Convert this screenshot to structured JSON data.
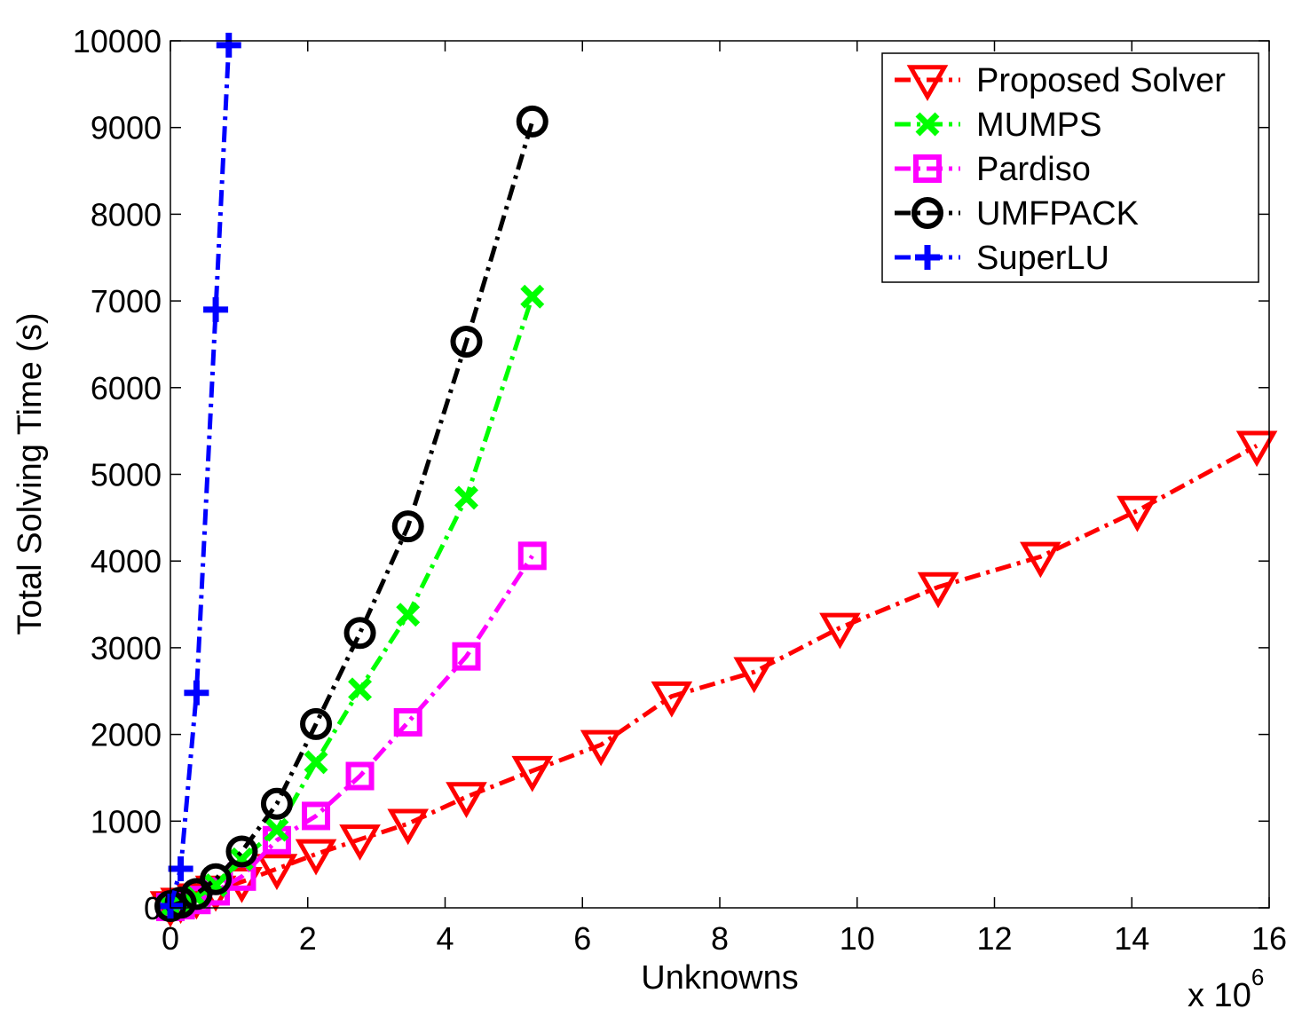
{
  "chart_data": {
    "type": "line",
    "xlabel": "Unknowns",
    "ylabel": "Total Solving Time (s)",
    "x_multiplier": "x 10",
    "x_multiplier_exp": "6",
    "xlim": [
      0,
      16
    ],
    "ylim": [
      0,
      10000
    ],
    "xticks": [
      0,
      2,
      4,
      6,
      8,
      10,
      12,
      14,
      16
    ],
    "yticks": [
      0,
      1000,
      2000,
      3000,
      4000,
      5000,
      6000,
      7000,
      8000,
      9000,
      10000
    ],
    "grid": false,
    "legend_position": "top-right",
    "series": [
      {
        "name": "Proposed Solver",
        "color": "#ff0000",
        "marker": "triangle-down",
        "x": [
          0.0,
          0.15,
          0.38,
          0.66,
          1.04,
          1.55,
          2.12,
          2.76,
          3.46,
          4.31,
          5.27,
          6.27,
          7.3,
          8.5,
          9.75,
          11.18,
          12.67,
          14.08,
          15.82
        ],
        "y": [
          20,
          60,
          110,
          200,
          300,
          450,
          620,
          790,
          970,
          1280,
          1580,
          1880,
          2440,
          2720,
          3230,
          3700,
          4050,
          4580,
          5330
        ]
      },
      {
        "name": "MUMPS",
        "color": "#00ff00",
        "marker": "x",
        "x": [
          0.0,
          0.15,
          0.38,
          0.66,
          1.04,
          1.55,
          2.12,
          2.76,
          3.46,
          4.31,
          5.27
        ],
        "y": [
          10,
          40,
          120,
          260,
          560,
          900,
          1680,
          2520,
          3380,
          4730,
          7050
        ]
      },
      {
        "name": "Pardiso",
        "color": "#ff00ff",
        "marker": "square",
        "x": [
          0.0,
          0.15,
          0.38,
          0.66,
          1.04,
          1.55,
          2.12,
          2.76,
          3.46,
          4.31,
          5.27
        ],
        "y": [
          10,
          30,
          90,
          190,
          360,
          780,
          1060,
          1520,
          2140,
          2900,
          4060
        ]
      },
      {
        "name": "UMFPACK",
        "color": "#000000",
        "marker": "circle",
        "x": [
          0.0,
          0.15,
          0.38,
          0.66,
          1.04,
          1.55,
          2.12,
          2.76,
          3.46,
          4.31,
          5.27
        ],
        "y": [
          20,
          60,
          160,
          330,
          650,
          1200,
          2120,
          3170,
          4400,
          6530,
          9070
        ]
      },
      {
        "name": "SuperLU",
        "color": "#0000ff",
        "marker": "plus",
        "x": [
          0.0,
          0.15,
          0.38,
          0.66,
          0.85
        ],
        "y": [
          20,
          450,
          2480,
          6900,
          9950
        ]
      }
    ]
  }
}
